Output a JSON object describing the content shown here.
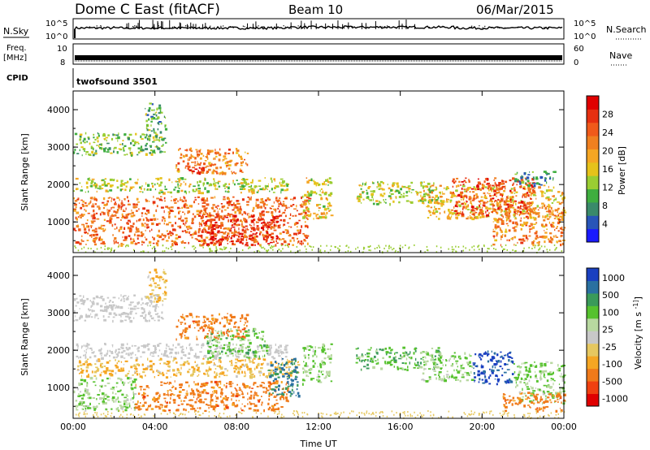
{
  "header": {
    "title": "Dome C East (fitACF)",
    "beam": "Beam 10",
    "date": "06/Mar/2015"
  },
  "nsky": {
    "label": "N.Sky",
    "tick_top": "10^5",
    "tick_bottom": "10^0",
    "right_tick_top": "10^5",
    "right_tick_bottom": "10^0",
    "right_label": "N.Search"
  },
  "freq": {
    "label_line1": "Freq.",
    "label_line2": "[MHz]",
    "tick_top": "10",
    "tick_bottom": "8",
    "right_tick_top": "60",
    "right_tick_bottom": "0",
    "right_label": "Nave"
  },
  "cpid": {
    "label": "CPID",
    "value": "twofsound 3501"
  },
  "colors": {
    "power_scale": [
      "#1a1aff",
      "#2855b8",
      "#3a8a6a",
      "#3fae3f",
      "#9acd32",
      "#e6c21a",
      "#f5a623",
      "#f08020",
      "#f05a1a",
      "#e63010",
      "#e00000"
    ],
    "velocity_scale": [
      "#e00000",
      "#f04010",
      "#f07a1a",
      "#f5a623",
      "#e6c860",
      "#c8c8c8",
      "#b8d8a0",
      "#56c22e",
      "#3a9a5a",
      "#2a70a0",
      "#1a40c0"
    ]
  },
  "chart_data": [
    {
      "type": "heatmap",
      "name": "power",
      "xlabel": "",
      "ylabel": "Slant Range [km]",
      "x_ticks": [
        "00:00",
        "04:00",
        "08:00",
        "12:00",
        "16:00",
        "20:00",
        "00:00"
      ],
      "xlim_hours": [
        0,
        24
      ],
      "y_ticks": [
        1000,
        2000,
        3000,
        4000
      ],
      "ylim": [
        180,
        4500
      ],
      "colorbar": {
        "label": "Power [dB]",
        "ticks": [
          4,
          8,
          12,
          16,
          20,
          24,
          28
        ],
        "range": [
          0,
          32
        ]
      },
      "regions": [
        {
          "t": [
            0.0,
            11.5
          ],
          "r": [
            400,
            1700
          ],
          "value": 24
        },
        {
          "t": [
            0.0,
            4.5
          ],
          "r": [
            2800,
            3400
          ],
          "value": 12
        },
        {
          "t": [
            3.5,
            4.5
          ],
          "r": [
            3300,
            4200
          ],
          "value": 10
        },
        {
          "t": [
            5.0,
            8.5
          ],
          "r": [
            2300,
            3000
          ],
          "value": 22
        },
        {
          "t": [
            5.5,
            6.5
          ],
          "r": [
            2300,
            2600
          ],
          "value": 28
        },
        {
          "t": [
            0.0,
            10.5
          ],
          "r": [
            1800,
            2200
          ],
          "value": 14
        },
        {
          "t": [
            6.0,
            10.0
          ],
          "r": [
            400,
            1200
          ],
          "value": 28
        },
        {
          "t": [
            11.2,
            12.6
          ],
          "r": [
            1100,
            2200
          ],
          "value": 16
        },
        {
          "t": [
            13.8,
            18.0
          ],
          "r": [
            1500,
            2100
          ],
          "value": 14
        },
        {
          "t": [
            17.0,
            24.0
          ],
          "r": [
            1100,
            2000
          ],
          "value": 18
        },
        {
          "t": [
            18.5,
            22.5
          ],
          "r": [
            1200,
            2200
          ],
          "value": 26
        },
        {
          "t": [
            20.5,
            24.0
          ],
          "r": [
            400,
            1400
          ],
          "value": 22
        },
        {
          "t": [
            21.5,
            23.5
          ],
          "r": [
            2000,
            2400
          ],
          "value": 8
        }
      ]
    },
    {
      "type": "heatmap",
      "name": "velocity",
      "xlabel": "Time UT",
      "ylabel": "Slant Range [km]",
      "x_ticks": [
        "00:00",
        "04:00",
        "08:00",
        "12:00",
        "16:00",
        "20:00",
        "00:00"
      ],
      "xlim_hours": [
        0,
        24
      ],
      "y_ticks": [
        1000,
        2000,
        3000,
        4000
      ],
      "ylim": [
        180,
        4500
      ],
      "colorbar": {
        "label": "Velocity [m s^-1]",
        "ticks": [
          "1000",
          "500",
          "100",
          "25",
          "-25",
          "-100",
          "-500",
          "-1000"
        ]
      },
      "regions": [
        {
          "t": [
            0.0,
            4.5
          ],
          "r": [
            2800,
            3500
          ],
          "value": 0
        },
        {
          "t": [
            3.5,
            4.5
          ],
          "r": [
            3300,
            4200
          ],
          "value": -60
        },
        {
          "t": [
            0.0,
            10.5
          ],
          "r": [
            1800,
            2200
          ],
          "value": 0
        },
        {
          "t": [
            0.0,
            11.0
          ],
          "r": [
            1300,
            1800
          ],
          "value": -60
        },
        {
          "t": [
            0.0,
            3.0
          ],
          "r": [
            400,
            1300
          ],
          "value": 60
        },
        {
          "t": [
            3.0,
            10.5
          ],
          "r": [
            400,
            1200
          ],
          "value": -200
        },
        {
          "t": [
            5.0,
            8.5
          ],
          "r": [
            2300,
            3000
          ],
          "value": -200
        },
        {
          "t": [
            6.5,
            9.5
          ],
          "r": [
            1800,
            2600
          ],
          "value": 80
        },
        {
          "t": [
            9.5,
            11.0
          ],
          "r": [
            800,
            1800
          ],
          "value": 300
        },
        {
          "t": [
            11.2,
            12.6
          ],
          "r": [
            1100,
            2200
          ],
          "value": 60
        },
        {
          "t": [
            13.8,
            18.0
          ],
          "r": [
            1500,
            2100
          ],
          "value": 100
        },
        {
          "t": [
            17.0,
            19.5
          ],
          "r": [
            1200,
            2000
          ],
          "value": 60
        },
        {
          "t": [
            19.5,
            21.5
          ],
          "r": [
            1100,
            2000
          ],
          "value": 800
        },
        {
          "t": [
            21.5,
            24.0
          ],
          "r": [
            600,
            1700
          ],
          "value": 60
        },
        {
          "t": [
            21.0,
            24.0
          ],
          "r": [
            400,
            900
          ],
          "value": -200
        }
      ]
    }
  ]
}
